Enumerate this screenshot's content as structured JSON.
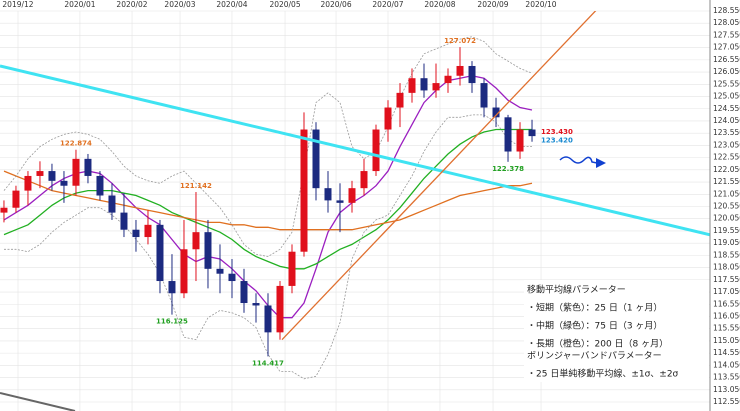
{
  "chart_data": {
    "type": "candlestick",
    "categories": [
      null,
      null,
      null,
      null,
      null,
      null,
      null,
      null,
      null,
      null,
      null,
      null,
      null,
      null,
      null,
      null,
      null,
      null,
      null,
      null,
      null,
      null,
      null,
      null,
      null,
      null,
      null,
      null,
      null,
      null,
      null,
      null,
      null,
      null,
      null,
      null,
      null,
      null,
      null,
      null,
      null,
      null,
      null,
      null,
      null
    ],
    "open": [
      120.3,
      120.5,
      121.2,
      121.8,
      122.0,
      121.6,
      121.4,
      122.5,
      121.8,
      121.0,
      120.3,
      119.6,
      119.3,
      119.8,
      117.5,
      117.0,
      118.8,
      119.5,
      118.0,
      117.8,
      117.5,
      116.6,
      116.5,
      115.4,
      117.3,
      118.7,
      123.7,
      121.3,
      120.8,
      120.7,
      121.3,
      122.0,
      123.7,
      124.6,
      125.2,
      125.8,
      125.3,
      125.6,
      125.9,
      126.3,
      125.6,
      124.6,
      124.2,
      122.8,
      123.7
    ],
    "high": [
      120.8,
      121.4,
      122.0,
      122.4,
      122.3,
      122.0,
      122.874,
      122.7,
      122.0,
      121.5,
      121.1,
      120.0,
      120.4,
      120.0,
      118.6,
      120.0,
      121.142,
      120.0,
      119.0,
      118.4,
      118.0,
      117.0,
      117.0,
      117.5,
      119.0,
      124.4,
      124.0,
      122.0,
      121.5,
      121.6,
      122.5,
      123.9,
      124.9,
      125.6,
      126.2,
      126.4,
      126.4,
      126.2,
      127.072,
      126.5,
      125.8,
      125.0,
      124.3,
      124.0,
      124.1
    ],
    "low": [
      119.9,
      120.3,
      120.6,
      121.3,
      121.2,
      120.7,
      121.0,
      121.5,
      120.8,
      120.0,
      119.3,
      118.7,
      119.0,
      117.0,
      116.125,
      116.8,
      117.5,
      117.2,
      117.0,
      116.8,
      116.2,
      115.8,
      114.417,
      115.1,
      117.0,
      118.5,
      120.8,
      120.3,
      119.5,
      120.3,
      121.0,
      121.8,
      123.2,
      123.8,
      124.8,
      125.0,
      125.0,
      125.2,
      125.5,
      125.2,
      124.2,
      123.8,
      122.378,
      122.5,
      123.2
    ],
    "close": [
      120.5,
      121.2,
      121.8,
      122.0,
      121.6,
      121.4,
      122.5,
      121.8,
      121.0,
      120.3,
      119.6,
      119.3,
      119.8,
      117.5,
      117.0,
      118.8,
      119.5,
      118.0,
      117.8,
      117.5,
      116.6,
      116.5,
      115.4,
      117.3,
      118.7,
      123.7,
      121.3,
      120.8,
      120.7,
      121.3,
      122.0,
      123.7,
      124.6,
      125.2,
      125.8,
      125.3,
      125.6,
      125.9,
      126.3,
      125.6,
      124.6,
      124.2,
      122.8,
      123.7,
      123.43
    ],
    "up_color": "#e0101c",
    "down_color": "#1c2a80",
    "series": [
      {
        "color": "#9b1fc0",
        "values": [
          120.0,
          120.3,
          120.6,
          121.0,
          121.4,
          121.7,
          121.9,
          122.0,
          121.9,
          121.5,
          121.0,
          120.5,
          120.1,
          119.8,
          119.2,
          118.6,
          118.3,
          118.5,
          118.4,
          118.0,
          117.5,
          117.1,
          116.5,
          116.0,
          116.0,
          116.6,
          118.0,
          119.5,
          120.3,
          120.7,
          121.0,
          121.4,
          122.0,
          123.0,
          123.9,
          124.8,
          125.3,
          125.7,
          125.8,
          125.9,
          125.8,
          125.4,
          124.9,
          124.6,
          124.5
        ]
      },
      {
        "color": "#22b022",
        "values": [
          119.4,
          119.6,
          119.8,
          120.2,
          120.6,
          120.9,
          121.1,
          121.2,
          121.2,
          121.2,
          121.1,
          121.0,
          120.8,
          120.6,
          120.3,
          120.1,
          119.9,
          119.7,
          119.5,
          119.2,
          118.8,
          118.5,
          118.3,
          118.1,
          118.0,
          118.0,
          118.2,
          118.5,
          118.8,
          119.0,
          119.3,
          119.6,
          120.0,
          120.5,
          121.1,
          121.7,
          122.2,
          122.7,
          123.1,
          123.4,
          123.6,
          123.7,
          123.7,
          123.7,
          123.7
        ]
      },
      {
        "color": "#e07020",
        "values": [
          122.0,
          121.8,
          121.6,
          121.4,
          121.2,
          121.1,
          121.0,
          120.9,
          120.8,
          120.7,
          120.6,
          120.5,
          120.4,
          120.3,
          120.2,
          120.1,
          120.0,
          119.9,
          119.9,
          119.8,
          119.8,
          119.7,
          119.7,
          119.6,
          119.6,
          119.6,
          119.6,
          119.6,
          119.6,
          119.6,
          119.7,
          119.8,
          119.9,
          120.0,
          120.2,
          120.4,
          120.6,
          120.8,
          121.0,
          121.1,
          121.2,
          121.3,
          121.4,
          121.4,
          121.5
        ]
      },
      {
        "color": "#9a9a9a",
        "dashed": true,
        "values": [
          121.2,
          121.8,
          122.5,
          123.0,
          123.3,
          123.5,
          123.6,
          123.5,
          123.3,
          122.8,
          122.2,
          121.8,
          121.6,
          121.5,
          121.8,
          122.0,
          121.5,
          121.0,
          120.5,
          119.8,
          119.0,
          118.6,
          118.5,
          118.8,
          119.5,
          122.0,
          124.8,
          125.2,
          124.8,
          123.0,
          122.5,
          122.8,
          123.8,
          125.0,
          126.0,
          126.8,
          127.0,
          127.2,
          127.4,
          127.5,
          127.3,
          126.8,
          126.5,
          126.2,
          126.0
        ]
      },
      {
        "color": "#9a9a9a",
        "dashed": true,
        "values": [
          118.8,
          118.8,
          118.7,
          119.0,
          119.5,
          119.9,
          120.2,
          120.5,
          120.5,
          120.2,
          119.8,
          119.2,
          118.6,
          117.8,
          116.6,
          115.2,
          115.1,
          116.0,
          116.3,
          116.2,
          116.0,
          115.6,
          114.5,
          113.8,
          113.8,
          113.5,
          113.6,
          114.5,
          115.8,
          118.4,
          119.5,
          120.0,
          120.2,
          121.0,
          121.8,
          122.8,
          123.6,
          124.2,
          124.2,
          124.3,
          124.3,
          124.0,
          123.3,
          123.0,
          123.0
        ]
      }
    ],
    "trendlines": [
      {
        "color": "#3fe3f2",
        "x": [
          -0.33,
          58.83
        ],
        "values": [
          126.3,
          119.39
        ]
      },
      {
        "color": "#e07030",
        "x": [
          23.17,
          49.67
        ],
        "values": [
          115.1,
          128.75
        ]
      }
    ],
    "annotations": [
      {
        "x": 6,
        "value": 122.874,
        "color": "#e07020",
        "side": "above"
      },
      {
        "x": 16,
        "value": 121.142,
        "color": "#e07020",
        "side": "above"
      },
      {
        "x": 38,
        "value": 127.072,
        "color": "#e07020",
        "side": "above"
      },
      {
        "x": 14,
        "value": 116.125,
        "color": "#22a022",
        "side": "below"
      },
      {
        "x": 22,
        "value": 114.417,
        "color": "#22a022",
        "side": "below"
      },
      {
        "x": 42,
        "value": 122.378,
        "color": "#22a022",
        "side": "below"
      }
    ],
    "price_labels": [
      {
        "value": 123.43,
        "label": "123.430",
        "color": "#e0101c"
      },
      {
        "value": 123.42,
        "label": "123.420",
        "color": "#1a8ad0"
      }
    ],
    "xlim": [
      -0.33,
      58.83
    ],
    "xticks": [
      {
        "value": 1.17,
        "label": "2019/12"
      },
      {
        "value": 6.33,
        "label": "2020/01"
      },
      {
        "value": 10.67,
        "label": "2020/02"
      },
      {
        "value": 14.67,
        "label": "2020/03"
      },
      {
        "value": 19,
        "label": "2020/04"
      },
      {
        "value": 23.42,
        "label": "2020/05"
      },
      {
        "value": 27.67,
        "label": "2020/06"
      },
      {
        "value": 32,
        "label": "2020/07"
      },
      {
        "value": 36.33,
        "label": "2020/08"
      },
      {
        "value": 40.75,
        "label": "2020/09"
      },
      {
        "value": 44.75,
        "label": "2020/10"
      }
    ],
    "ylim": [
      112.55,
      128.55
    ],
    "yticks": [
      {
        "value": 128.55,
        "label": "128.550"
      },
      {
        "value": 128.05,
        "label": "128.050"
      },
      {
        "value": 127.55,
        "label": "127.550"
      },
      {
        "value": 127.05,
        "label": "127.050"
      },
      {
        "value": 126.55,
        "label": "126.550"
      },
      {
        "value": 126.05,
        "label": "126.050"
      },
      {
        "value": 125.55,
        "label": "125.550"
      },
      {
        "value": 125.05,
        "label": "125.050"
      },
      {
        "value": 124.55,
        "label": "124.550"
      },
      {
        "value": 124.05,
        "label": "124.050"
      },
      {
        "value": 123.55,
        "label": "123.550"
      },
      {
        "value": 123.05,
        "label": "123.050"
      },
      {
        "value": 122.55,
        "label": "122.550"
      },
      {
        "value": 122.05,
        "label": "122.050"
      },
      {
        "value": 121.55,
        "label": "121.550"
      },
      {
        "value": 121.05,
        "label": "121.050"
      },
      {
        "value": 120.55,
        "label": "120.550"
      },
      {
        "value": 120.05,
        "label": "120.050"
      },
      {
        "value": 119.55,
        "label": "119.550"
      },
      {
        "value": 119.05,
        "label": "119.050"
      },
      {
        "value": 118.55,
        "label": "118.550"
      },
      {
        "value": 118.05,
        "label": "118.050"
      },
      {
        "value": 117.55,
        "label": "117.550"
      },
      {
        "value": 117.05,
        "label": "117.050"
      },
      {
        "value": 116.55,
        "label": "116.550"
      },
      {
        "value": 116.05,
        "label": "116.050"
      },
      {
        "value": 115.55,
        "label": "115.550"
      },
      {
        "value": 115.05,
        "label": "115.050"
      },
      {
        "value": 114.55,
        "label": "114.550"
      },
      {
        "value": 114.05,
        "label": "114.050"
      },
      {
        "value": 113.55,
        "label": "113.550"
      },
      {
        "value": 113.05,
        "label": "113.050"
      },
      {
        "value": 112.55,
        "label": "112.550"
      }
    ],
    "grid": true,
    "notes": [
      "移動平均線パラメーター",
      "・短期（紫色）：25 日（1 ヶ月）",
      "・中期（緑色）：75 日（3 ヶ月）",
      "・長期（橙色）：200 日（8 ヶ月）",
      "ボリンジャーバンドパラメーター",
      "・25 日単純移動平均線、±1σ、±2σ"
    ]
  }
}
